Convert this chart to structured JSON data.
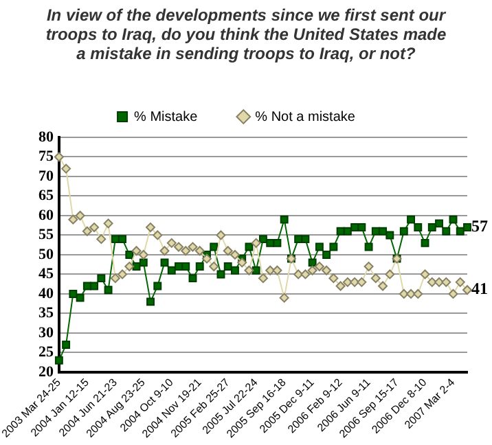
{
  "chart_data": {
    "type": "line",
    "title": "In view of the developments since we first sent our troops to Iraq, do you think the United States made a mistake in sending troops to Iraq, or not?",
    "categories": [
      "2003 Mar 24-25",
      null,
      null,
      null,
      "2004 Jan 12-15",
      null,
      null,
      null,
      "2004 Jun 21-23",
      null,
      null,
      null,
      "2004 Aug 23-25",
      null,
      null,
      null,
      "2004 Oct 9-10",
      null,
      null,
      null,
      "2004 Nov 19-21",
      null,
      null,
      null,
      "2005 Feb 25-27",
      null,
      null,
      null,
      "2005 Jul 22-24",
      null,
      null,
      null,
      "2005 Sep 16-18",
      null,
      null,
      null,
      "2005 Dec 9-11",
      null,
      null,
      null,
      "2006 Feb 9-12",
      null,
      null,
      null,
      "2006 Jun 9-11",
      null,
      null,
      null,
      "2006 Sep 15-17",
      null,
      null,
      null,
      "2006 Dec 8-10",
      null,
      null,
      null,
      "2007 Mar 2-4",
      null,
      null
    ],
    "series": [
      {
        "name": "% Mistake",
        "color": "#006600",
        "marker": "square",
        "values": [
          23,
          27,
          40,
          39,
          42,
          42,
          44,
          41,
          54,
          54,
          50,
          47,
          48,
          38,
          42,
          48,
          46,
          47,
          47,
          44,
          47,
          50,
          52,
          45,
          47,
          46,
          49,
          52,
          46,
          54,
          53,
          53,
          59,
          49,
          54,
          54,
          48,
          52,
          50,
          52,
          56,
          56,
          57,
          57,
          52,
          56,
          56,
          55,
          49,
          56,
          59,
          57,
          53,
          57,
          58,
          56,
          59,
          56,
          57
        ]
      },
      {
        "name": "% Not a mistake",
        "color": "#e0d8a8",
        "marker": "diamond",
        "values": [
          75,
          72,
          59,
          60,
          56,
          57,
          54,
          58,
          44,
          45,
          47,
          51,
          50,
          57,
          55,
          51,
          53,
          52,
          51,
          52,
          51,
          49,
          47,
          55,
          51,
          50,
          48,
          46,
          53,
          44,
          46,
          46,
          39,
          49,
          45,
          45,
          46,
          47,
          46,
          44,
          42,
          43,
          43,
          43,
          47,
          44,
          42,
          45,
          49,
          40,
          40,
          40,
          45,
          43,
          43,
          43,
          40,
          43,
          41
        ]
      }
    ],
    "ylim": [
      20,
      80
    ],
    "yticks": [
      20,
      25,
      30,
      35,
      40,
      45,
      50,
      55,
      60,
      65,
      70,
      75,
      80
    ],
    "grid": "y",
    "legend": "top",
    "annotations": [
      "57",
      "41"
    ]
  }
}
